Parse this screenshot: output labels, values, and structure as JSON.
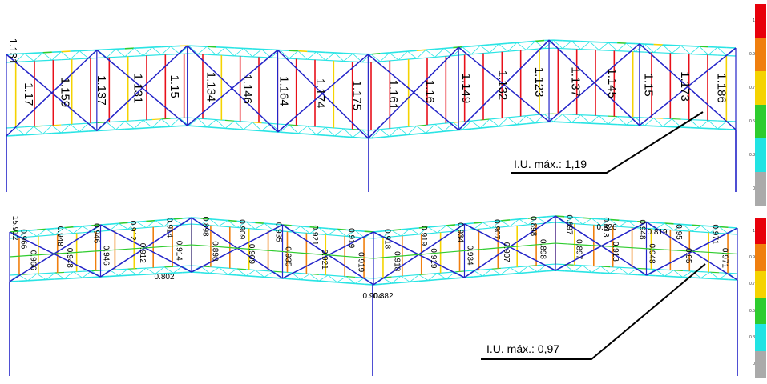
{
  "panels": {
    "upper": {
      "callout": "I.U. máx.: 1,19",
      "corner_label": "1.131",
      "member_labels": [
        "1.17",
        "1.159",
        "1.137",
        "1.131",
        "1.15",
        "1.134",
        "1.146",
        "1.164",
        "1.174",
        "1.175",
        "1.161",
        "1.16",
        "1.149",
        "1.132",
        "1.123",
        "1.137",
        "1.145",
        "1.15",
        "1.173",
        "1.186"
      ]
    },
    "lower": {
      "callout": "I.U. máx.: 0,97",
      "corner_label": "15.912",
      "member_labels_top": [
        "0.966",
        "0.948",
        "0.946",
        "0.912",
        "0.914",
        "0.898",
        "0.909",
        "0.935",
        "0.921",
        "0.919",
        "0.918",
        "0.919",
        "0.934",
        "0.907",
        "0.898",
        "0.897",
        "0.913",
        "0.948",
        "0.95",
        "0.971"
      ],
      "member_labels_bottom": [
        "0.966",
        "0.948",
        "0.946",
        "0.912",
        "0.914",
        "0.898",
        "0.909",
        "0.935",
        "0.921",
        "0.919",
        "0.918",
        "0.919",
        "0.934",
        "0.907",
        "0.898",
        "0.897",
        "0.913",
        "0.948",
        "0.95",
        "0.971"
      ],
      "extra_labels": [
        "0.802",
        "0.904",
        "0.882",
        "0.826",
        "0.819"
      ]
    }
  },
  "legend": {
    "ticks": [
      "1",
      "0.9",
      "0.7",
      "0.5",
      "0.3",
      "0"
    ],
    "colors": [
      "#e8000b",
      "#f07f0e",
      "#f5d300",
      "#2ecc2e",
      "#21e3e3",
      "#aaaaaa"
    ]
  },
  "colors": {
    "chord": "#29e4e4",
    "diagonal": "#2323c8",
    "high": "#e8101a",
    "mid": "#f5d300",
    "green": "#2ecc2e",
    "orange": "#f07f0e"
  }
}
